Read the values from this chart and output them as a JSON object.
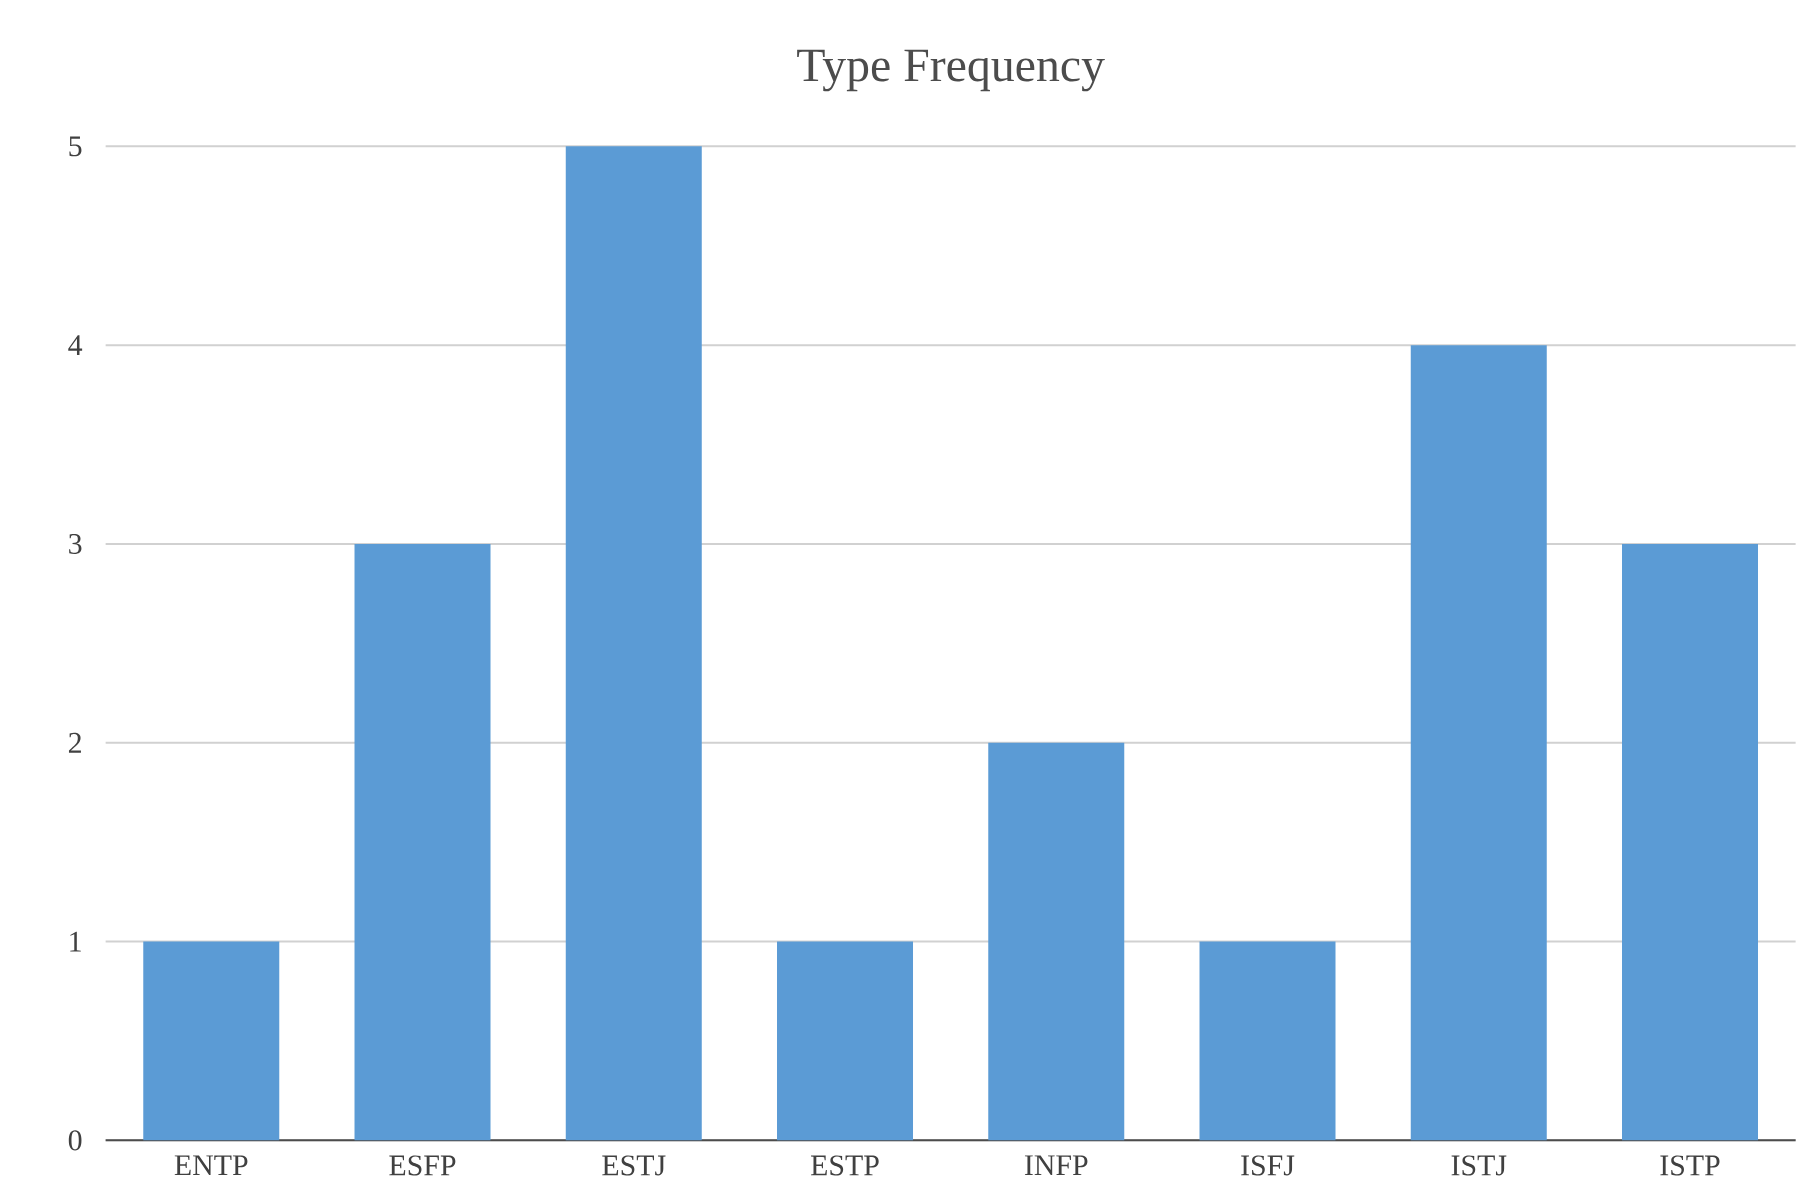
{
  "chart_data": {
    "type": "bar",
    "title": "Type Frequency",
    "categories": [
      "ENTP",
      "ESFP",
      "ESTJ",
      "ESTP",
      "INFP",
      "ISFJ",
      "ISTJ",
      "ISTP"
    ],
    "values": [
      1,
      3,
      5,
      1,
      2,
      1,
      4,
      3
    ],
    "color": "#5b9bd5",
    "ylim": [
      0,
      5
    ],
    "yticks": [
      0,
      1,
      2,
      3,
      4,
      5
    ],
    "grid": "y"
  }
}
